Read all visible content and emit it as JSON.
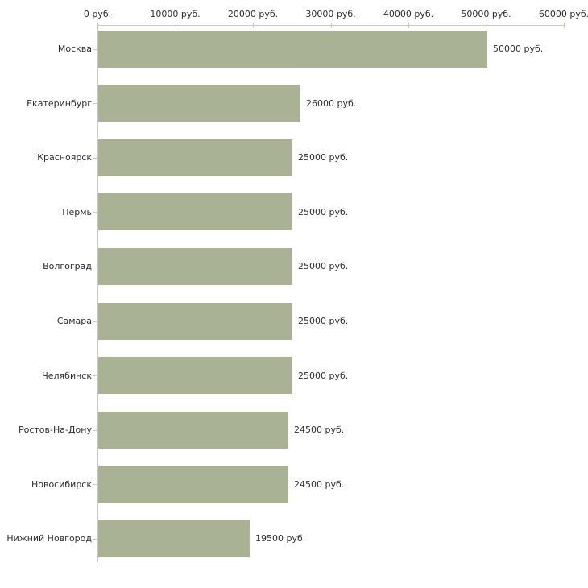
{
  "chart_data": {
    "type": "bar",
    "orientation": "horizontal",
    "title": "",
    "xlabel": "",
    "ylabel": "",
    "categories": [
      "Москва",
      "Екатеринбург",
      "Красноярск",
      "Пермь",
      "Волгоград",
      "Самара",
      "Челябинск",
      "Ростов-На-Дону",
      "Новосибирск",
      "Нижний Новгород"
    ],
    "values": [
      50000,
      26000,
      25000,
      25000,
      25000,
      25000,
      25000,
      24500,
      24500,
      19500
    ],
    "value_labels": [
      "50000 руб.",
      "26000 руб.",
      "25000 руб.",
      "25000 руб.",
      "25000 руб.",
      "25000 руб.",
      "25000 руб.",
      "24500 руб.",
      "24500 руб.",
      "19500 руб."
    ],
    "x_axis": {
      "position": "top",
      "min": 0,
      "max": 60000,
      "ticks": [
        0,
        10000,
        20000,
        30000,
        40000,
        50000,
        60000
      ],
      "tick_labels": [
        "0 руб.",
        "10000 руб.",
        "20000 руб.",
        "30000 руб.",
        "40000 руб.",
        "50000 руб.",
        "60000 руб."
      ]
    },
    "grid": false,
    "legend": false,
    "colors": {
      "bar": "#a9b294",
      "axis_line": "#c9c9c3",
      "tick_mark": "#d0c9a2",
      "text": "#2e2e2e",
      "background": "#ffffff"
    }
  }
}
